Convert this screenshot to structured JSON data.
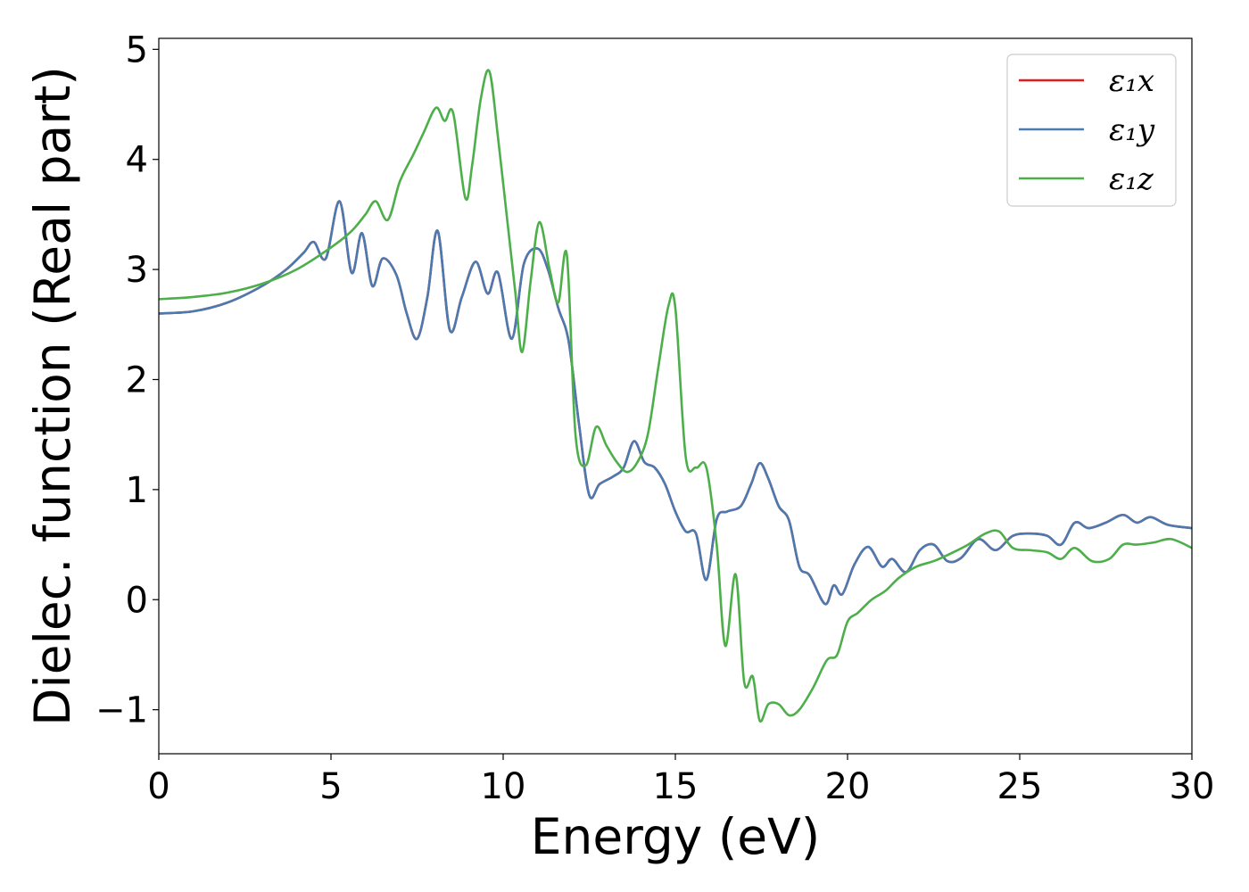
{
  "chart_data": {
    "type": "line",
    "title": "",
    "xlabel": "Energy (eV)",
    "ylabel": "Dielec. function (Real part)",
    "xlim": [
      0,
      30
    ],
    "ylim": [
      -1.4,
      5.1
    ],
    "xticks": [
      0,
      5,
      10,
      15,
      20,
      25,
      30
    ],
    "yticks": [
      -1,
      0,
      1,
      2,
      3,
      4,
      5
    ],
    "xtick_labels": [
      "0",
      "5",
      "10",
      "15",
      "20",
      "25",
      "30"
    ],
    "ytick_labels": [
      "−1",
      "0",
      "1",
      "2",
      "3",
      "4",
      "5"
    ],
    "grid": false,
    "legend_position": "top-right",
    "series": [
      {
        "name": "ε₁x",
        "color": "#e41a1c",
        "x": [
          0,
          1,
          2,
          3,
          3.7,
          4.2,
          4.5,
          4.85,
          5.25,
          5.6,
          5.9,
          6.2,
          6.5,
          6.9,
          7.2,
          7.5,
          7.8,
          8.1,
          8.45,
          8.8,
          9.2,
          9.55,
          9.85,
          10.25,
          10.6,
          11.0,
          11.3,
          11.6,
          11.9,
          12.2,
          12.5,
          12.8,
          13.2,
          13.5,
          13.8,
          14.1,
          14.4,
          14.7,
          15.0,
          15.3,
          15.6,
          15.9,
          16.2,
          16.5,
          16.9,
          17.2,
          17.45,
          17.7,
          18.0,
          18.3,
          18.6,
          18.9,
          19.35,
          19.6,
          19.85,
          20.2,
          20.6,
          21.0,
          21.3,
          21.7,
          22.1,
          22.5,
          22.9,
          23.3,
          23.8,
          24.3,
          24.8,
          25.3,
          25.8,
          26.2,
          26.6,
          27.0,
          27.5,
          28.0,
          28.4,
          28.8,
          29.3,
          30.0
        ],
        "values": [
          2.6,
          2.62,
          2.7,
          2.85,
          3.0,
          3.15,
          3.25,
          3.1,
          3.62,
          2.97,
          3.33,
          2.85,
          3.1,
          2.95,
          2.6,
          2.37,
          2.75,
          3.35,
          2.45,
          2.75,
          3.07,
          2.78,
          2.97,
          2.37,
          3.05,
          3.19,
          3.0,
          2.65,
          2.35,
          1.6,
          0.95,
          1.05,
          1.12,
          1.2,
          1.44,
          1.25,
          1.2,
          1.05,
          0.8,
          0.62,
          0.6,
          0.18,
          0.73,
          0.8,
          0.85,
          1.05,
          1.24,
          1.1,
          0.85,
          0.72,
          0.3,
          0.22,
          -0.04,
          0.13,
          0.05,
          0.32,
          0.48,
          0.3,
          0.37,
          0.25,
          0.45,
          0.5,
          0.35,
          0.38,
          0.55,
          0.45,
          0.58,
          0.6,
          0.58,
          0.5,
          0.7,
          0.65,
          0.7,
          0.77,
          0.7,
          0.75,
          0.68,
          0.65
        ]
      },
      {
        "name": "ε₁y",
        "color": "#4a7ab0",
        "x": [
          0,
          1,
          2,
          3,
          3.7,
          4.2,
          4.5,
          4.85,
          5.25,
          5.6,
          5.9,
          6.2,
          6.5,
          6.9,
          7.2,
          7.5,
          7.8,
          8.1,
          8.45,
          8.8,
          9.2,
          9.55,
          9.85,
          10.25,
          10.6,
          11.0,
          11.3,
          11.6,
          11.9,
          12.2,
          12.5,
          12.8,
          13.2,
          13.5,
          13.8,
          14.1,
          14.4,
          14.7,
          15.0,
          15.3,
          15.6,
          15.9,
          16.2,
          16.5,
          16.9,
          17.2,
          17.45,
          17.7,
          18.0,
          18.3,
          18.6,
          18.9,
          19.35,
          19.6,
          19.85,
          20.2,
          20.6,
          21.0,
          21.3,
          21.7,
          22.1,
          22.5,
          22.9,
          23.3,
          23.8,
          24.3,
          24.8,
          25.3,
          25.8,
          26.2,
          26.6,
          27.0,
          27.5,
          28.0,
          28.4,
          28.8,
          29.3,
          30.0
        ],
        "values": [
          2.6,
          2.62,
          2.7,
          2.85,
          3.0,
          3.15,
          3.25,
          3.1,
          3.62,
          2.97,
          3.33,
          2.85,
          3.1,
          2.95,
          2.6,
          2.37,
          2.75,
          3.35,
          2.45,
          2.75,
          3.07,
          2.78,
          2.97,
          2.37,
          3.05,
          3.19,
          3.0,
          2.65,
          2.35,
          1.6,
          0.95,
          1.05,
          1.12,
          1.2,
          1.44,
          1.25,
          1.2,
          1.05,
          0.8,
          0.62,
          0.6,
          0.18,
          0.73,
          0.8,
          0.85,
          1.05,
          1.24,
          1.1,
          0.85,
          0.72,
          0.3,
          0.22,
          -0.04,
          0.13,
          0.05,
          0.32,
          0.48,
          0.3,
          0.37,
          0.25,
          0.45,
          0.5,
          0.35,
          0.38,
          0.55,
          0.45,
          0.58,
          0.6,
          0.58,
          0.5,
          0.7,
          0.65,
          0.7,
          0.77,
          0.7,
          0.75,
          0.68,
          0.65
        ]
      },
      {
        "name": "ε₁z",
        "color": "#4daf4a",
        "x": [
          0,
          1,
          2,
          3,
          4,
          5,
          5.6,
          6.0,
          6.3,
          6.65,
          7.0,
          7.4,
          7.7,
          8.05,
          8.3,
          8.55,
          8.9,
          9.1,
          9.35,
          9.6,
          9.85,
          10.1,
          10.35,
          10.55,
          10.8,
          11.05,
          11.35,
          11.6,
          11.85,
          12.1,
          12.4,
          12.7,
          13.0,
          13.3,
          13.6,
          13.9,
          14.2,
          14.5,
          14.8,
          15.0,
          15.3,
          15.6,
          15.9,
          16.2,
          16.45,
          16.75,
          17.0,
          17.25,
          17.45,
          17.7,
          18.0,
          18.3,
          18.6,
          19.0,
          19.4,
          19.7,
          20.0,
          20.3,
          20.7,
          21.1,
          21.5,
          22.0,
          22.5,
          23.0,
          23.5,
          24.0,
          24.4,
          24.8,
          25.3,
          25.8,
          26.2,
          26.6,
          27.1,
          27.6,
          28.0,
          28.4,
          28.9,
          29.4,
          30.0
        ],
        "values": [
          2.73,
          2.75,
          2.79,
          2.87,
          3.0,
          3.2,
          3.35,
          3.5,
          3.62,
          3.45,
          3.8,
          4.05,
          4.25,
          4.47,
          4.35,
          4.42,
          3.65,
          3.95,
          4.55,
          4.8,
          4.2,
          3.5,
          2.8,
          2.25,
          2.9,
          3.43,
          3.0,
          2.7,
          3.13,
          1.5,
          1.22,
          1.57,
          1.4,
          1.25,
          1.16,
          1.25,
          1.5,
          2.1,
          2.67,
          2.65,
          1.3,
          1.2,
          1.2,
          0.5,
          -0.42,
          0.23,
          -0.75,
          -0.7,
          -1.1,
          -0.95,
          -0.95,
          -1.05,
          -1.0,
          -0.8,
          -0.55,
          -0.5,
          -0.2,
          -0.12,
          0.0,
          0.08,
          0.2,
          0.3,
          0.35,
          0.42,
          0.5,
          0.6,
          0.62,
          0.47,
          0.45,
          0.43,
          0.37,
          0.47,
          0.35,
          0.37,
          0.5,
          0.5,
          0.52,
          0.55,
          0.47
        ]
      }
    ]
  }
}
